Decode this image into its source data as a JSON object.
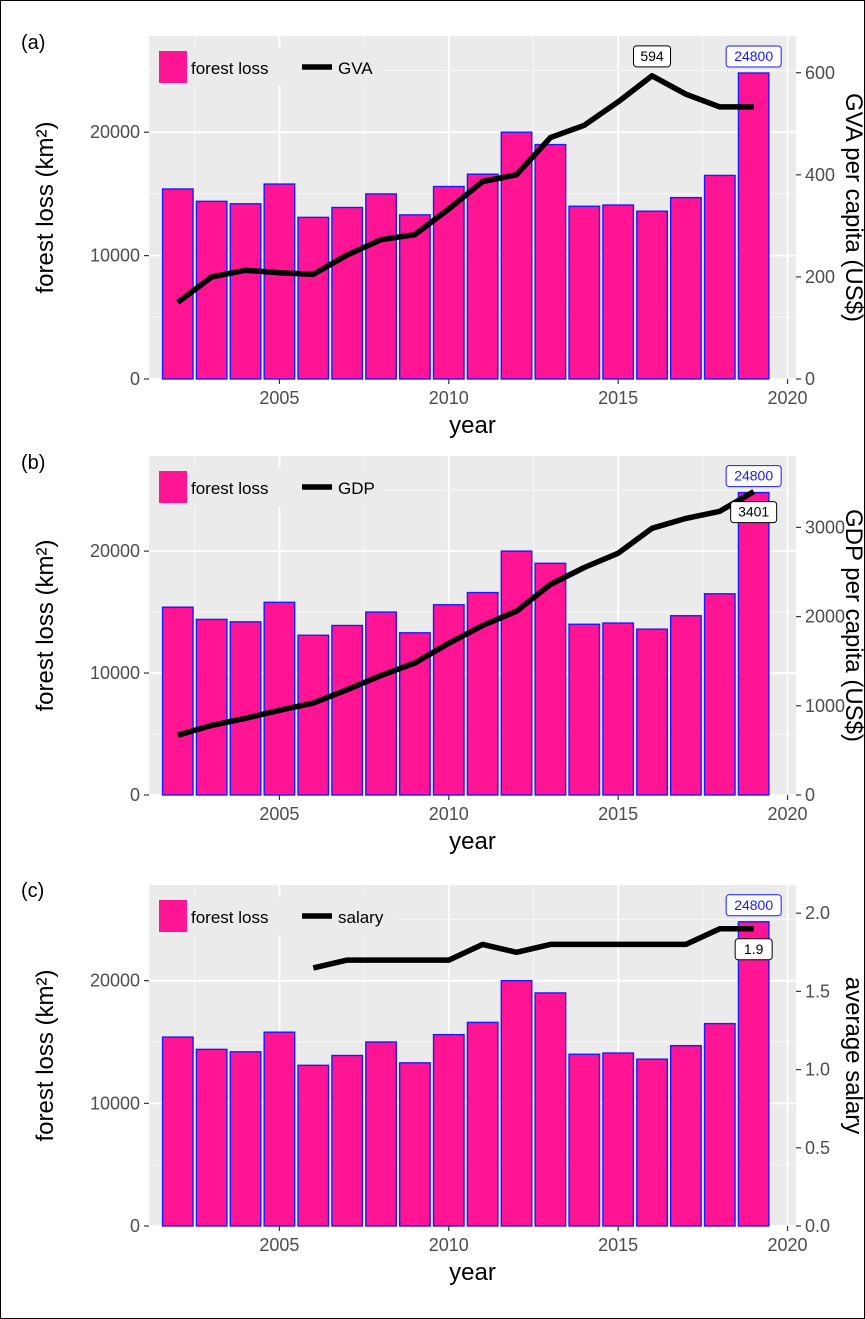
{
  "colors": {
    "bar_fill": "#ff1493",
    "bar_stroke": "#1a1aff",
    "line": "#000000",
    "panel_bg": "#ebebeb",
    "grid": "#ffffff",
    "tick_text": "#4d4d4d",
    "max_label_text": "#1a1aff"
  },
  "chart_data": [
    {
      "type": "bar",
      "panel_label": "(a)",
      "xlabel": "year",
      "ylabel": "forest loss (km²)",
      "y2label": "GVA per capita (US$)",
      "x_ticks": [
        2005,
        2010,
        2015,
        2020
      ],
      "y_ticks": [
        0,
        10000,
        20000
      ],
      "y_tick_labels": [
        "0",
        "10000",
        "20000"
      ],
      "y2_ticks": [
        0,
        200,
        400,
        600
      ],
      "y2_tick_labels": [
        "0",
        "200",
        "400",
        "600"
      ],
      "ylim": [
        0,
        27800
      ],
      "y2lim": [
        0,
        672
      ],
      "legend": [
        "forest loss",
        "GVA"
      ],
      "grid": true,
      "x": [
        2002,
        2003,
        2004,
        2005,
        2006,
        2007,
        2008,
        2009,
        2010,
        2011,
        2012,
        2013,
        2014,
        2015,
        2016,
        2017,
        2018,
        2019
      ],
      "series": [
        {
          "name": "forest loss",
          "type": "bar",
          "axis": "left",
          "values": [
            15400,
            14400,
            14200,
            15800,
            13100,
            13900,
            15000,
            13300,
            15600,
            16600,
            20000,
            19000,
            14000,
            14100,
            13600,
            14700,
            16500,
            24800
          ]
        },
        {
          "name": "GVA",
          "type": "line",
          "axis": "right",
          "values": [
            150,
            200,
            213,
            208,
            205,
            243,
            273,
            283,
            333,
            387,
            400,
            473,
            497,
            543,
            594,
            558,
            533,
            533
          ]
        }
      ],
      "annotations": [
        {
          "text": "24800",
          "x": 2019,
          "y": 24800,
          "axis": "left",
          "style": "max"
        },
        {
          "text": "594",
          "x": 2016,
          "y": 594,
          "axis": "right",
          "style": "line",
          "pos": "above"
        }
      ]
    },
    {
      "type": "bar",
      "panel_label": "(b)",
      "xlabel": "year",
      "ylabel": "forest loss (km²)",
      "y2label": "GDP per capita (US$)",
      "x_ticks": [
        2005,
        2010,
        2015,
        2020
      ],
      "y_ticks": [
        0,
        10000,
        20000
      ],
      "y_tick_labels": [
        "0",
        "10000",
        "20000"
      ],
      "y2_ticks": [
        0,
        1000,
        2000,
        3000
      ],
      "y2_tick_labels": [
        "0",
        "1000",
        "2000",
        "3000"
      ],
      "ylim": [
        0,
        27800
      ],
      "y2lim": [
        0,
        3800
      ],
      "legend": [
        "forest loss",
        "GDP"
      ],
      "grid": true,
      "x": [
        2002,
        2003,
        2004,
        2005,
        2006,
        2007,
        2008,
        2009,
        2010,
        2011,
        2012,
        2013,
        2014,
        2015,
        2016,
        2017,
        2018,
        2019
      ],
      "series": [
        {
          "name": "forest loss",
          "type": "bar",
          "axis": "left",
          "values": [
            15400,
            14400,
            14200,
            15800,
            13100,
            13900,
            15000,
            13300,
            15600,
            16600,
            20000,
            19000,
            14000,
            14100,
            13600,
            14700,
            16500,
            24800
          ]
        },
        {
          "name": "GDP",
          "type": "line",
          "axis": "right",
          "values": [
            670,
            780,
            860,
            950,
            1030,
            1180,
            1340,
            1480,
            1700,
            1900,
            2060,
            2360,
            2550,
            2710,
            2990,
            3100,
            3180,
            3401
          ]
        }
      ],
      "annotations": [
        {
          "text": "24800",
          "x": 2019,
          "y": 24800,
          "axis": "left",
          "style": "max"
        },
        {
          "text": "3401",
          "x": 2019,
          "y": 3401,
          "axis": "right",
          "style": "line",
          "pos": "below"
        }
      ]
    },
    {
      "type": "bar",
      "panel_label": "(c)",
      "xlabel": "year",
      "ylabel": "forest loss (km²)",
      "y2label": "average salary",
      "x_ticks": [
        2005,
        2010,
        2015,
        2020
      ],
      "y_ticks": [
        0,
        10000,
        20000
      ],
      "y_tick_labels": [
        "0",
        "10000",
        "20000"
      ],
      "y2_ticks": [
        0,
        0.5,
        1.0,
        1.5,
        2.0
      ],
      "y2_tick_labels": [
        "0.0",
        "0.5",
        "1.0",
        "1.5",
        "2.0"
      ],
      "ylim": [
        0,
        27800
      ],
      "y2lim": [
        0,
        2.18
      ],
      "legend": [
        "forest loss",
        "salary"
      ],
      "grid": true,
      "x": [
        2002,
        2003,
        2004,
        2005,
        2006,
        2007,
        2008,
        2009,
        2010,
        2011,
        2012,
        2013,
        2014,
        2015,
        2016,
        2017,
        2018,
        2019
      ],
      "series": [
        {
          "name": "forest loss",
          "type": "bar",
          "axis": "left",
          "values": [
            15400,
            14400,
            14200,
            15800,
            13100,
            13900,
            15000,
            13300,
            15600,
            16600,
            20000,
            19000,
            14000,
            14100,
            13600,
            14700,
            16500,
            24800
          ]
        },
        {
          "name": "salary",
          "type": "line",
          "axis": "right",
          "x": [
            2006,
            2007,
            2008,
            2009,
            2010,
            2011,
            2012,
            2013,
            2014,
            2015,
            2016,
            2017,
            2018,
            2019
          ],
          "values": [
            1.65,
            1.7,
            1.7,
            1.7,
            1.7,
            1.8,
            1.75,
            1.8,
            1.8,
            1.8,
            1.8,
            1.8,
            1.9,
            1.9
          ]
        }
      ],
      "annotations": [
        {
          "text": "24800",
          "x": 2019,
          "y": 24800,
          "axis": "left",
          "style": "max"
        },
        {
          "text": "1.9",
          "x": 2019,
          "y": 1.9,
          "axis": "right",
          "style": "line",
          "pos": "below"
        }
      ]
    }
  ]
}
